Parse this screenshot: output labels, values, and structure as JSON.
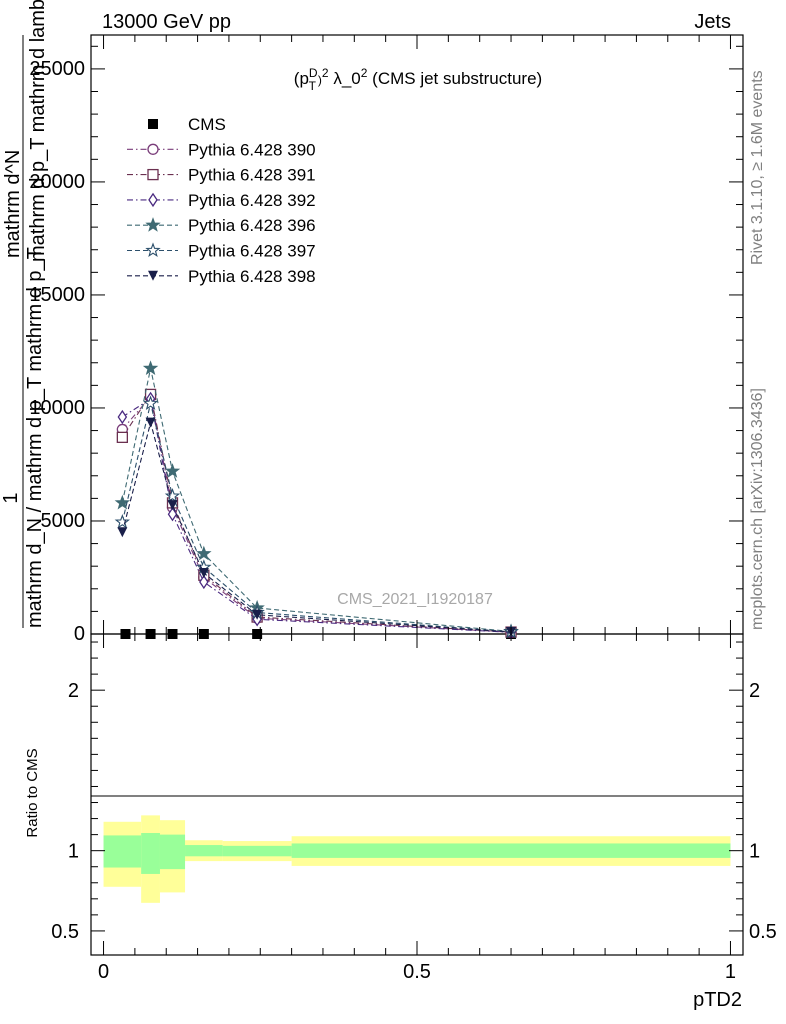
{
  "header": {
    "left": "13000 GeV pp",
    "right": "Jets"
  },
  "plot_title": "(p_T^D)^2 λ_0^2 (CMS jet substructure)",
  "side_text": {
    "rivet": "Rivet 3.1.10, ≥ 1.6M events",
    "mcplots": "mcplots.cern.ch [arXiv:1306.3436]"
  },
  "watermark": "CMS_2021_I1920187",
  "ylabel_main": {
    "frac_top": "1",
    "frac_bottom": "mathrm d_N / mathrm d p_T mathrm d p_T",
    "second_top": "mathrm d^N",
    "second_bottom": "mathrm d p_T mathrm d lambda"
  },
  "ylabel_ratio": "Ratio to CMS",
  "xlabel": "pTD2",
  "colors": {
    "cms": "#000000",
    "s390": "#7a3d7a",
    "s391": "#6b3050",
    "s392": "#4a2a80",
    "s396": "#3f6a73",
    "s397": "#2c4f6b",
    "s398": "#1a1f4a",
    "band_yellow": "#ffff99",
    "band_green": "#99ff99"
  },
  "chart_data": {
    "type": "line",
    "main": {
      "xlim": [
        -0.02,
        1.02
      ],
      "ylim": [
        0,
        26500
      ],
      "yticks": [
        0,
        5000,
        10000,
        15000,
        20000,
        25000
      ],
      "ytick_labels": [
        "0",
        "5000",
        "10000",
        "15000",
        "20000",
        "25000"
      ],
      "series": [
        {
          "name": "CMS",
          "marker": "square",
          "style": "points",
          "x": [
            0.035,
            0.075,
            0.11,
            0.16,
            0.245,
            0.65
          ],
          "y": [
            0,
            0,
            0,
            0,
            0,
            0
          ]
        },
        {
          "name": "Pythia 6.428 390",
          "marker": "circle-open",
          "style": "dashdot",
          "x": [
            0.03,
            0.075,
            0.11,
            0.16,
            0.245,
            0.65
          ],
          "y": [
            9050,
            10500,
            5600,
            2500,
            700,
            80
          ]
        },
        {
          "name": "Pythia 6.428 391",
          "marker": "square-open",
          "style": "dashdot",
          "x": [
            0.03,
            0.075,
            0.11,
            0.16,
            0.245,
            0.65
          ],
          "y": [
            8700,
            10600,
            5800,
            2600,
            750,
            85
          ]
        },
        {
          "name": "Pythia 6.428 392",
          "marker": "diamond-open",
          "style": "dashdot",
          "x": [
            0.03,
            0.075,
            0.11,
            0.16,
            0.245,
            0.65
          ],
          "y": [
            9600,
            10400,
            5300,
            2300,
            650,
            75
          ]
        },
        {
          "name": "Pythia 6.428 396",
          "marker": "star-filled",
          "style": "dashed",
          "x": [
            0.03,
            0.075,
            0.11,
            0.16,
            0.245,
            0.65
          ],
          "y": [
            5800,
            11750,
            7200,
            3550,
            1150,
            110
          ]
        },
        {
          "name": "Pythia 6.428 397",
          "marker": "star-open",
          "style": "dashed",
          "x": [
            0.03,
            0.075,
            0.11,
            0.16,
            0.245,
            0.65
          ],
          "y": [
            4950,
            10200,
            6100,
            2950,
            950,
            95
          ]
        },
        {
          "name": "Pythia 6.428 398",
          "marker": "triangle-down-filled",
          "style": "dashed",
          "x": [
            0.03,
            0.075,
            0.11,
            0.16,
            0.245,
            0.65
          ],
          "y": [
            4500,
            9350,
            5700,
            2700,
            850,
            90
          ]
        }
      ]
    },
    "ratio": {
      "ylim": [
        0.35,
        2.35
      ],
      "yticks": [
        0.5,
        1,
        2
      ],
      "ytick_labels": [
        "0.5",
        "1",
        "2"
      ],
      "bins": [
        {
          "x0": 0.0,
          "x1": 0.06,
          "y_lo": 0.775,
          "y_hi": 1.18,
          "g_lo": 0.895,
          "g_hi": 1.095
        },
        {
          "x0": 0.06,
          "x1": 0.09,
          "y_lo": 0.675,
          "y_hi": 1.22,
          "g_lo": 0.855,
          "g_hi": 1.11
        },
        {
          "x0": 0.09,
          "x1": 0.13,
          "y_lo": 0.74,
          "y_hi": 1.19,
          "g_lo": 0.885,
          "g_hi": 1.1
        },
        {
          "x0": 0.13,
          "x1": 0.19,
          "y_lo": 0.935,
          "y_hi": 1.065,
          "g_lo": 0.965,
          "g_hi": 1.035
        },
        {
          "x0": 0.19,
          "x1": 0.3,
          "y_lo": 0.935,
          "y_hi": 1.06,
          "g_lo": 0.965,
          "g_hi": 1.03
        },
        {
          "x0": 0.3,
          "x1": 1.0,
          "y_lo": 0.905,
          "y_hi": 1.09,
          "g_lo": 0.955,
          "g_hi": 1.045
        }
      ]
    },
    "xticks": [
      0,
      0.5,
      1
    ],
    "xtick_labels": [
      "0",
      "0.5",
      "1"
    ],
    "legend_position": "top-left",
    "grid": false
  }
}
